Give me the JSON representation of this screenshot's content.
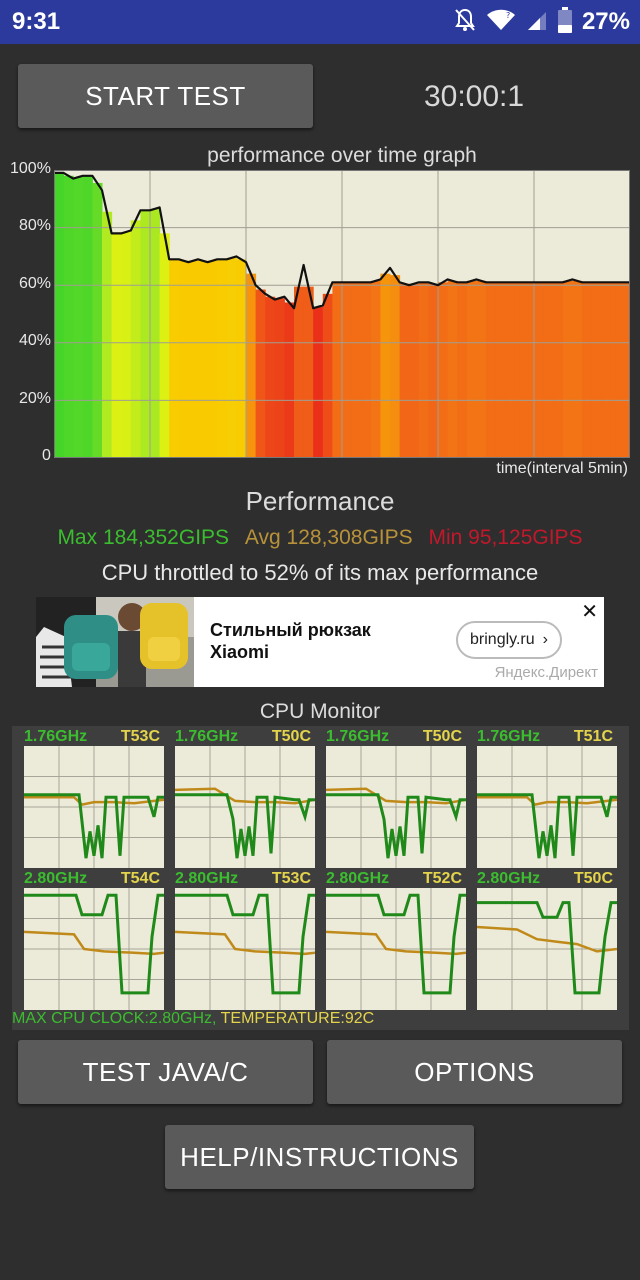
{
  "status_bar": {
    "time": "9:31",
    "battery": "27%",
    "icons": [
      "notifications-off-icon",
      "wifi-icon",
      "signal-icon",
      "battery-icon"
    ]
  },
  "controls": {
    "start_label": "START TEST",
    "timer": "30:00:1"
  },
  "graph": {
    "title": "performance over time graph",
    "y_ticks": [
      "100%",
      "80%",
      "60%",
      "40%",
      "20%",
      "0"
    ],
    "x_label": "time(interval 5min)"
  },
  "chart_data": {
    "type": "area",
    "title": "performance over time graph",
    "xlabel": "time(interval 5min)",
    "ylabel": "",
    "ylim": [
      0,
      100
    ],
    "y_ticks": [
      0,
      20,
      40,
      60,
      80,
      100
    ],
    "x_range_min": [
      0,
      30
    ],
    "grid": true,
    "x": [
      0,
      0.5,
      1,
      1.5,
      2,
      2.5,
      3,
      3.5,
      4,
      4.5,
      5,
      5.5,
      6,
      6.5,
      7,
      7.5,
      8,
      8.5,
      9,
      9.5,
      10,
      10.5,
      11,
      11.5,
      12,
      12.5,
      13,
      13.5,
      14,
      14.5,
      15,
      15.5,
      16,
      16.5,
      17,
      17.5,
      18,
      18.5,
      19,
      19.5,
      20,
      20.5,
      21,
      21.5,
      22,
      22.5,
      23,
      23.5,
      24,
      24.5,
      25,
      25.5,
      26,
      26.5,
      27,
      27.5,
      28,
      28.5,
      29,
      29.5,
      30
    ],
    "values": [
      99,
      99,
      97,
      98,
      98,
      93,
      78,
      78,
      79,
      86,
      86,
      87,
      69,
      69,
      68,
      69,
      68,
      69,
      69,
      70,
      68,
      60,
      57,
      55,
      56,
      52,
      67,
      52,
      53,
      61,
      61,
      61,
      61,
      61,
      62,
      66,
      61,
      60,
      61,
      61,
      60,
      62,
      61,
      61,
      62,
      61,
      61,
      61,
      61,
      61,
      61,
      61,
      61,
      61,
      62,
      61,
      61,
      61,
      61,
      61,
      61
    ],
    "fill": "color by performance (green = high, red = low)"
  },
  "performance": {
    "title": "Performance",
    "max_text": "Max 184,352GIPS",
    "avg_text": "Avg 128,308GIPS",
    "min_text": "Min 95,125GIPS",
    "throttle_text": "CPU throttled to 52% of its max performance",
    "colors": {
      "max": "#3bbd2f",
      "avg": "#b8923a",
      "min": "#c2182b"
    }
  },
  "ad": {
    "title": "Стильный рюкзак Xiaomi",
    "link": "bringly.ru",
    "source": "Яндекс.Директ"
  },
  "cpu_monitor": {
    "title": "CPU Monitor",
    "cores": [
      {
        "freq": "1.76GHz",
        "temp": "T53C"
      },
      {
        "freq": "1.76GHz",
        "temp": "T50C"
      },
      {
        "freq": "1.76GHz",
        "temp": "T50C"
      },
      {
        "freq": "1.76GHz",
        "temp": "T51C"
      },
      {
        "freq": "2.80GHz",
        "temp": "T54C"
      },
      {
        "freq": "2.80GHz",
        "temp": "T53C"
      },
      {
        "freq": "2.80GHz",
        "temp": "T52C"
      },
      {
        "freq": "2.80GHz",
        "temp": "T50C"
      }
    ],
    "footer_clock": "MAX CPU CLOCK:2.80GHz,",
    "footer_temp": "TEMPERATURE:92C",
    "colors": {
      "freq_line": "#1f8a1a",
      "temp_line": "#c08a1a",
      "footer_clock": "#3bbd2f",
      "footer_temp": "#e4d44c"
    }
  },
  "buttons": {
    "test_java_c": "TEST JAVA/C",
    "options": "OPTIONS",
    "help": "HELP/INSTRUCTIONS"
  }
}
